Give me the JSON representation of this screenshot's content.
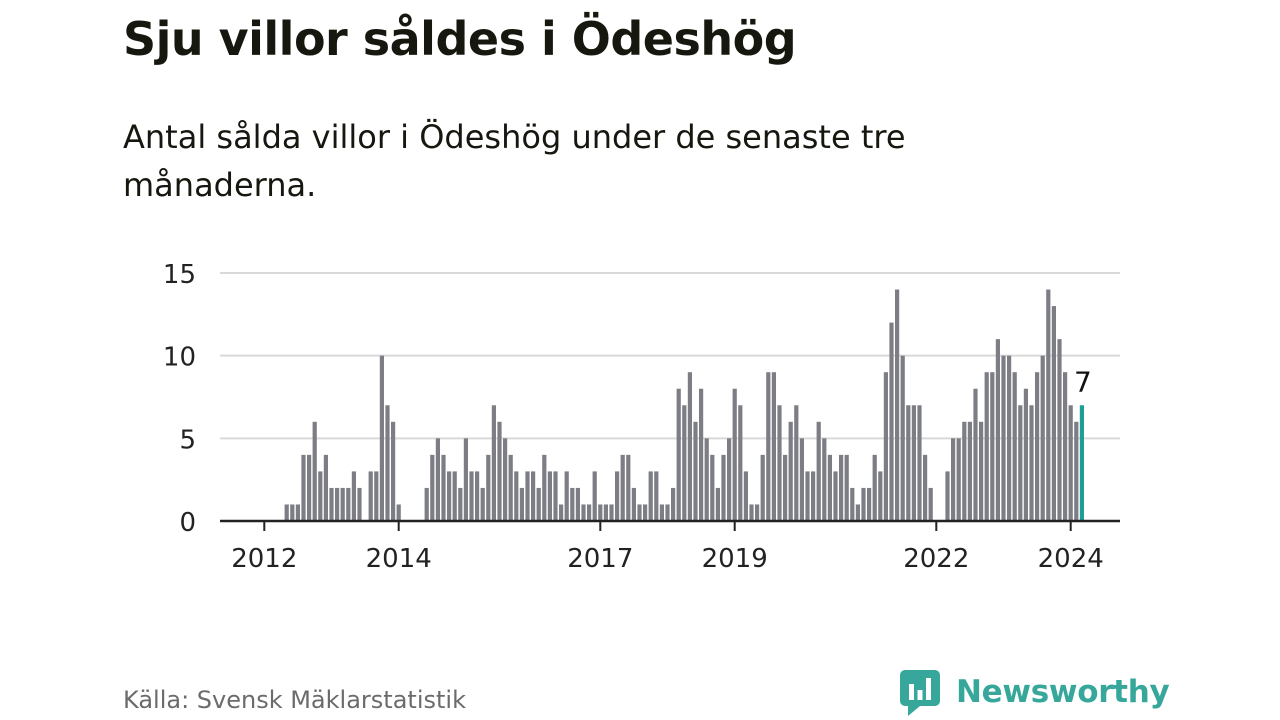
{
  "title": "Sju villor såldes i Ödeshög",
  "subtitle": "Antal sålda villor i Ödeshög under de senaste tre månaderna.",
  "source": "Källa: Svensk Mäklarstatistik",
  "brand": "Newsworthy",
  "colors": {
    "bar": "#7d7d85",
    "highlight": "#1f9e96",
    "grid": "#d9d9d9",
    "axis": "#222222",
    "brand": "#36a79a"
  },
  "chart_data": {
    "type": "bar",
    "title": "Sju villor såldes i Ödeshög",
    "xlabel": "",
    "ylabel": "",
    "ylim": [
      0,
      15
    ],
    "yticks": [
      0,
      5,
      10,
      15
    ],
    "x_ticks": [
      "2012",
      "2014",
      "2017",
      "2019",
      "2022",
      "2024"
    ],
    "x_tick_positions": [
      7,
      31,
      67,
      91,
      127,
      151
    ],
    "highlight_label": "7",
    "series": [
      {
        "name": "Antal sålda villor",
        "values": [
          0,
          0,
          0,
          0,
          0,
          0,
          0,
          0,
          0,
          0,
          0,
          1,
          1,
          1,
          4,
          4,
          6,
          3,
          4,
          2,
          2,
          2,
          2,
          3,
          2,
          0,
          3,
          3,
          10,
          7,
          6,
          1,
          0,
          0,
          0,
          0,
          2,
          4,
          5,
          4,
          3,
          3,
          2,
          5,
          3,
          3,
          2,
          4,
          7,
          6,
          5,
          4,
          3,
          2,
          3,
          3,
          2,
          4,
          3,
          3,
          1,
          3,
          2,
          2,
          1,
          1,
          3,
          1,
          1,
          1,
          3,
          4,
          4,
          2,
          1,
          1,
          3,
          3,
          1,
          1,
          2,
          8,
          7,
          9,
          6,
          8,
          5,
          4,
          2,
          4,
          5,
          8,
          7,
          3,
          1,
          1,
          4,
          9,
          9,
          7,
          4,
          6,
          7,
          5,
          3,
          3,
          6,
          5,
          4,
          3,
          4,
          4,
          2,
          1,
          2,
          2,
          4,
          3,
          9,
          12,
          14,
          10,
          7,
          7,
          7,
          4,
          2,
          0,
          0,
          3,
          5,
          5,
          6,
          6,
          8,
          6,
          9,
          9,
          11,
          10,
          10,
          9,
          7,
          8,
          7,
          9,
          10,
          14,
          13,
          11,
          9,
          7,
          6,
          7
        ]
      }
    ]
  }
}
